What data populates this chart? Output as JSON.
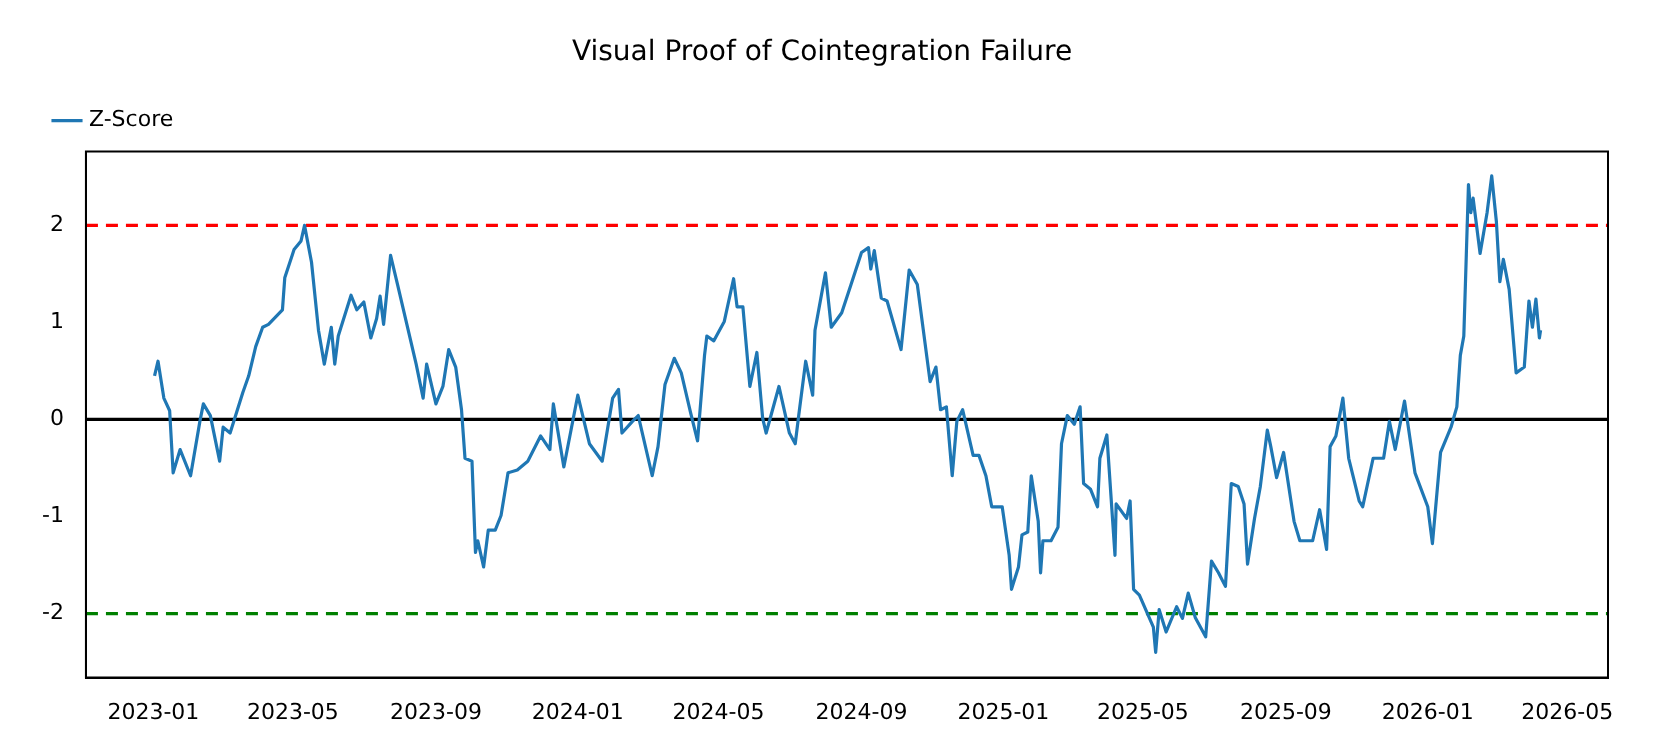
{
  "chart_data": {
    "type": "line",
    "title": "Visual Proof of Cointegration Failure",
    "x": [
      "2023-01-02",
      "2023-01-05",
      "2023-01-10",
      "2023-01-15",
      "2023-01-18",
      "2023-01-24",
      "2023-02-02",
      "2023-02-10",
      "2023-02-13",
      "2023-02-19",
      "2023-02-27",
      "2023-03-02",
      "2023-03-08",
      "2023-03-19",
      "2023-03-24",
      "2023-03-30",
      "2023-04-05",
      "2023-04-10",
      "2023-04-22",
      "2023-04-24",
      "2023-05-02",
      "2023-05-08",
      "2023-05-11",
      "2023-05-17",
      "2023-05-23",
      "2023-05-28",
      "2023-06-03",
      "2023-06-06",
      "2023-06-09",
      "2023-06-20",
      "2023-06-25",
      "2023-07-01",
      "2023-07-07",
      "2023-07-12",
      "2023-07-15",
      "2023-07-18",
      "2023-07-24",
      "2023-07-30",
      "2023-08-07",
      "2023-08-15",
      "2023-08-21",
      "2023-08-24",
      "2023-09-01",
      "2023-09-07",
      "2023-09-12",
      "2023-09-18",
      "2023-09-23",
      "2023-09-26",
      "2023-10-02",
      "2023-10-05",
      "2023-10-07",
      "2023-10-12",
      "2023-10-16",
      "2023-10-22",
      "2023-10-27",
      "2023-11-02",
      "2023-11-10",
      "2023-11-19",
      "2023-11-30",
      "2023-12-08",
      "2023-12-11",
      "2023-12-20",
      "2024-01-01",
      "2024-01-11",
      "2024-01-22",
      "2024-01-31",
      "2024-02-05",
      "2024-02-08",
      "2024-02-17",
      "2024-02-22",
      "2024-03-05",
      "2024-03-10",
      "2024-03-16",
      "2024-03-24",
      "2024-03-30",
      "2024-04-07",
      "2024-04-13",
      "2024-04-19",
      "2024-04-21",
      "2024-04-27",
      "2024-05-06",
      "2024-05-14",
      "2024-05-17",
      "2024-05-22",
      "2024-05-28",
      "2024-06-03",
      "2024-06-08",
      "2024-06-11",
      "2024-06-22",
      "2024-07-01",
      "2024-07-06",
      "2024-07-09",
      "2024-07-15",
      "2024-07-21",
      "2024-07-23",
      "2024-08-01",
      "2024-08-06",
      "2024-08-15",
      "2024-08-23",
      "2024-09-01",
      "2024-09-07",
      "2024-09-09",
      "2024-09-12",
      "2024-09-18",
      "2024-09-23",
      "2024-10-05",
      "2024-10-12",
      "2024-10-19",
      "2024-10-30",
      "2024-11-04",
      "2024-11-08",
      "2024-11-13",
      "2024-11-18",
      "2024-11-22",
      "2024-11-27",
      "2024-12-06",
      "2024-12-11",
      "2024-12-17",
      "2024-12-22",
      "2024-12-31",
      "2025-01-06",
      "2025-01-08",
      "2025-01-14",
      "2025-01-17",
      "2025-01-22",
      "2025-01-25",
      "2025-01-31",
      "2025-02-02",
      "2025-02-04",
      "2025-02-11",
      "2025-02-17",
      "2025-02-20",
      "2025-02-25",
      "2025-03-03",
      "2025-03-08",
      "2025-03-11",
      "2025-03-17",
      "2025-03-23",
      "2025-03-25",
      "2025-03-31",
      "2025-04-07",
      "2025-04-08",
      "2025-04-17",
      "2025-04-20",
      "2025-04-23",
      "2025-04-28",
      "2025-05-10",
      "2025-05-12",
      "2025-05-15",
      "2025-05-21",
      "2025-05-30",
      "2025-06-04",
      "2025-06-09",
      "2025-06-15",
      "2025-06-24",
      "2025-06-29",
      "2025-07-05",
      "2025-07-11",
      "2025-07-16",
      "2025-07-22",
      "2025-07-27",
      "2025-07-30",
      "2025-08-05",
      "2025-08-10",
      "2025-08-16",
      "2025-08-19",
      "2025-08-24",
      "2025-08-30",
      "2025-09-08",
      "2025-09-13",
      "2025-09-24",
      "2025-09-30",
      "2025-10-06",
      "2025-10-09",
      "2025-10-14",
      "2025-10-20",
      "2025-10-25",
      "2025-11-03",
      "2025-11-06",
      "2025-11-15",
      "2025-11-24",
      "2025-11-29",
      "2025-12-04",
      "2025-12-12",
      "2025-12-21",
      "2026-01-01",
      "2026-01-05",
      "2026-01-12",
      "2026-01-21",
      "2026-01-26",
      "2026-01-29",
      "2026-02-01",
      "2026-02-05",
      "2026-02-07",
      "2026-02-09",
      "2026-02-15",
      "2026-02-21",
      "2026-02-25",
      "2026-03-01",
      "2026-03-04",
      "2026-03-07",
      "2026-03-12",
      "2026-03-18",
      "2026-03-25",
      "2026-03-29",
      "2026-04-01",
      "2026-04-04",
      "2026-04-07",
      "2026-04-08"
    ],
    "series": [
      {
        "name": "Z-Score",
        "color": "#1f77b4",
        "values": [
          0.45,
          0.6,
          0.22,
          0.09,
          -0.55,
          -0.31,
          -0.58,
          -0.02,
          0.16,
          0.04,
          -0.43,
          -0.08,
          -0.14,
          0.28,
          0.45,
          0.75,
          0.95,
          0.98,
          1.13,
          1.46,
          1.75,
          1.84,
          2.0,
          1.62,
          0.92,
          0.57,
          0.95,
          0.57,
          0.86,
          1.28,
          1.13,
          1.21,
          0.84,
          1.04,
          1.27,
          0.98,
          1.69,
          1.39,
          0.98,
          0.57,
          0.22,
          0.57,
          0.16,
          0.34,
          0.72,
          0.54,
          0.1,
          -0.4,
          -0.43,
          -1.37,
          -1.25,
          -1.52,
          -1.14,
          -1.14,
          -0.99,
          -0.55,
          -0.52,
          -0.43,
          -0.17,
          -0.31,
          0.16,
          -0.49,
          0.25,
          -0.25,
          -0.43,
          0.22,
          0.31,
          -0.14,
          -0.02,
          0.04,
          -0.58,
          -0.28,
          0.36,
          0.63,
          0.48,
          0.07,
          -0.22,
          0.66,
          0.86,
          0.81,
          1.01,
          1.45,
          1.16,
          1.16,
          0.34,
          0.69,
          0.01,
          -0.14,
          0.34,
          -0.14,
          -0.25,
          0.04,
          0.6,
          0.25,
          0.92,
          1.51,
          0.95,
          1.1,
          1.39,
          1.72,
          1.77,
          1.55,
          1.74,
          1.25,
          1.22,
          0.72,
          1.54,
          1.39,
          0.39,
          0.54,
          0.1,
          0.13,
          -0.58,
          -0.02,
          0.1,
          -0.37,
          -0.37,
          -0.58,
          -0.9,
          -0.9,
          -1.4,
          -1.75,
          -1.52,
          -1.19,
          -1.16,
          -0.58,
          -1.05,
          -1.58,
          -1.25,
          -1.25,
          -1.11,
          -0.25,
          0.04,
          -0.05,
          0.13,
          -0.66,
          -0.72,
          -0.9,
          -0.4,
          -0.16,
          -1.4,
          -0.87,
          -1.02,
          -0.84,
          -1.75,
          -1.81,
          -2.14,
          -2.4,
          -1.96,
          -2.19,
          -1.93,
          -2.05,
          -1.79,
          -2.04,
          -2.24,
          -1.46,
          -1.58,
          -1.72,
          -0.66,
          -0.69,
          -0.87,
          -1.49,
          -1.02,
          -0.69,
          -0.11,
          -0.28,
          -0.6,
          -0.34,
          -1.05,
          -1.25,
          -1.25,
          -0.93,
          -1.34,
          -0.28,
          -0.17,
          0.22,
          -0.4,
          -0.84,
          -0.9,
          -0.4,
          -0.4,
          -0.02,
          -0.31,
          0.19,
          -0.55,
          -0.9,
          -1.28,
          -0.34,
          -0.08,
          0.13,
          0.66,
          0.86,
          2.42,
          2.13,
          2.28,
          1.71,
          2.13,
          2.51,
          2.04,
          1.42,
          1.65,
          1.34,
          0.48,
          0.54,
          1.22,
          0.95,
          1.24,
          0.84,
          0.92
        ]
      }
    ],
    "xlim": [
      "2022-11-04",
      "2026-06-05"
    ],
    "xticks": [
      "2023-01",
      "2023-05",
      "2023-09",
      "2024-01",
      "2024-05",
      "2024-09",
      "2025-01",
      "2025-05",
      "2025-09",
      "2026-01",
      "2026-05"
    ],
    "ylim": [
      -2.66,
      2.76
    ],
    "yticks": [
      -2,
      -1,
      0,
      1,
      2
    ],
    "ref_lines": [
      {
        "axis": "y",
        "value": 2,
        "color": "#ff0000",
        "line_style": "dashed"
      },
      {
        "axis": "y",
        "value": 0,
        "color": "#000000",
        "line_style": "solid"
      },
      {
        "axis": "y",
        "value": -2,
        "color": "#008000",
        "line_style": "dashed"
      }
    ],
    "legend": "top left",
    "marker": "none",
    "line_style": "solid"
  }
}
